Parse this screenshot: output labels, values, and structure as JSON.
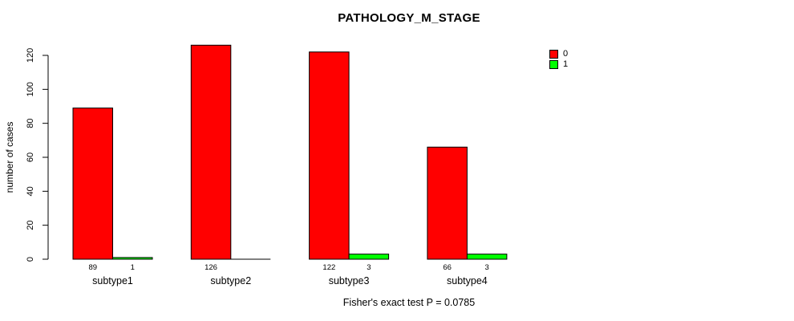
{
  "chart_data": {
    "type": "bar",
    "title": "PATHOLOGY_M_STAGE",
    "ylabel": "number of cases",
    "xlabel": "",
    "categories": [
      "subtype1",
      "subtype2",
      "subtype3",
      "subtype4"
    ],
    "series": [
      {
        "name": "0",
        "color": "#ff0000",
        "values": [
          89,
          126,
          122,
          66
        ]
      },
      {
        "name": "1",
        "color": "#00ff00",
        "values": [
          1,
          0,
          3,
          3
        ]
      }
    ],
    "value_labels": [
      [
        "89",
        "1"
      ],
      [
        "126",
        ""
      ],
      [
        "122",
        "3"
      ],
      [
        "66",
        "3"
      ]
    ],
    "yticks": [
      0,
      20,
      40,
      60,
      80,
      100,
      120
    ],
    "ylim": [
      0,
      120
    ],
    "grid": false,
    "bar_border_color": "#000000",
    "legend": {
      "position": "top-right",
      "entries": [
        {
          "label": "0",
          "color": "#ff0000"
        },
        {
          "label": "1",
          "color": "#00ff00"
        }
      ]
    },
    "annotation": "Fisher's exact test P = 0.0785"
  }
}
